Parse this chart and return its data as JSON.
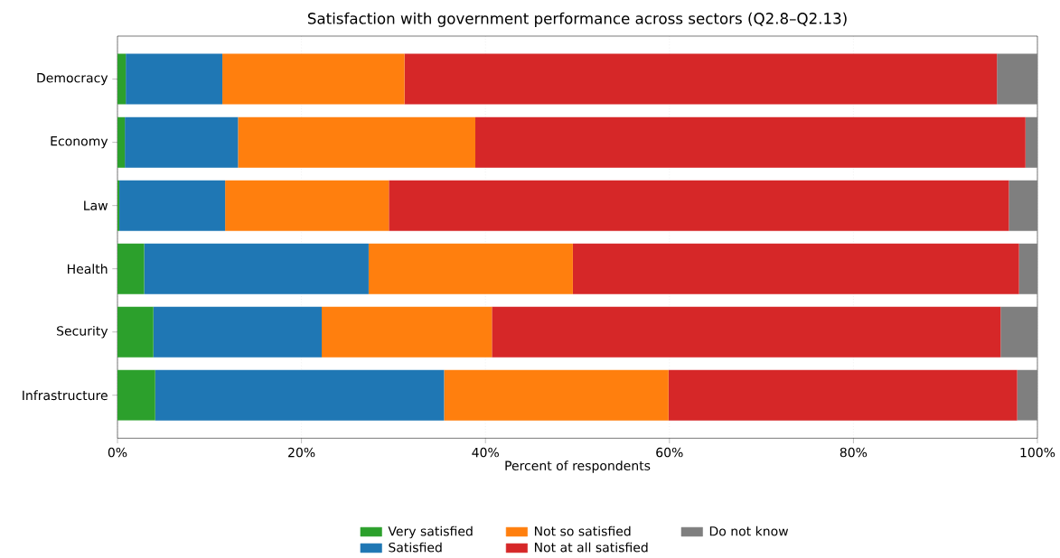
{
  "chart_data": {
    "type": "bar",
    "orientation": "horizontal",
    "stacked": true,
    "title": "Satisfaction with government performance across sectors (Q2.8–Q2.13)",
    "xlabel": "Percent of respondents",
    "categories": [
      "Democracy",
      "Economy",
      "Law",
      "Health",
      "Security",
      "Infrastructure"
    ],
    "series": [
      {
        "name": "Very satisfied",
        "color": "#2ca02c",
        "values": [
          0.9,
          0.8,
          0.2,
          2.9,
          3.9,
          4.1
        ]
      },
      {
        "name": "Satisfied",
        "color": "#1f77b4",
        "values": [
          10.5,
          12.3,
          11.5,
          24.4,
          18.3,
          31.4
        ]
      },
      {
        "name": "Not so satisfied",
        "color": "#ff7f0e",
        "values": [
          19.8,
          25.8,
          17.8,
          22.2,
          18.5,
          24.4
        ]
      },
      {
        "name": "Not at all satisfied",
        "color": "#d62728",
        "values": [
          64.4,
          59.8,
          67.4,
          48.5,
          55.3,
          37.9
        ]
      },
      {
        "name": "Do not know",
        "color": "#7f7f7f",
        "values": [
          4.4,
          1.3,
          3.1,
          2.0,
          4.0,
          2.2
        ]
      }
    ],
    "xlim": [
      0,
      100
    ],
    "xticks": [
      {
        "value": 0,
        "label": "0%"
      },
      {
        "value": 20,
        "label": "20%"
      },
      {
        "value": 40,
        "label": "40%"
      },
      {
        "value": 60,
        "label": "60%"
      },
      {
        "value": 80,
        "label": "80%"
      },
      {
        "value": 100,
        "label": "100%"
      }
    ],
    "grid": "x",
    "legend": "bottom"
  }
}
